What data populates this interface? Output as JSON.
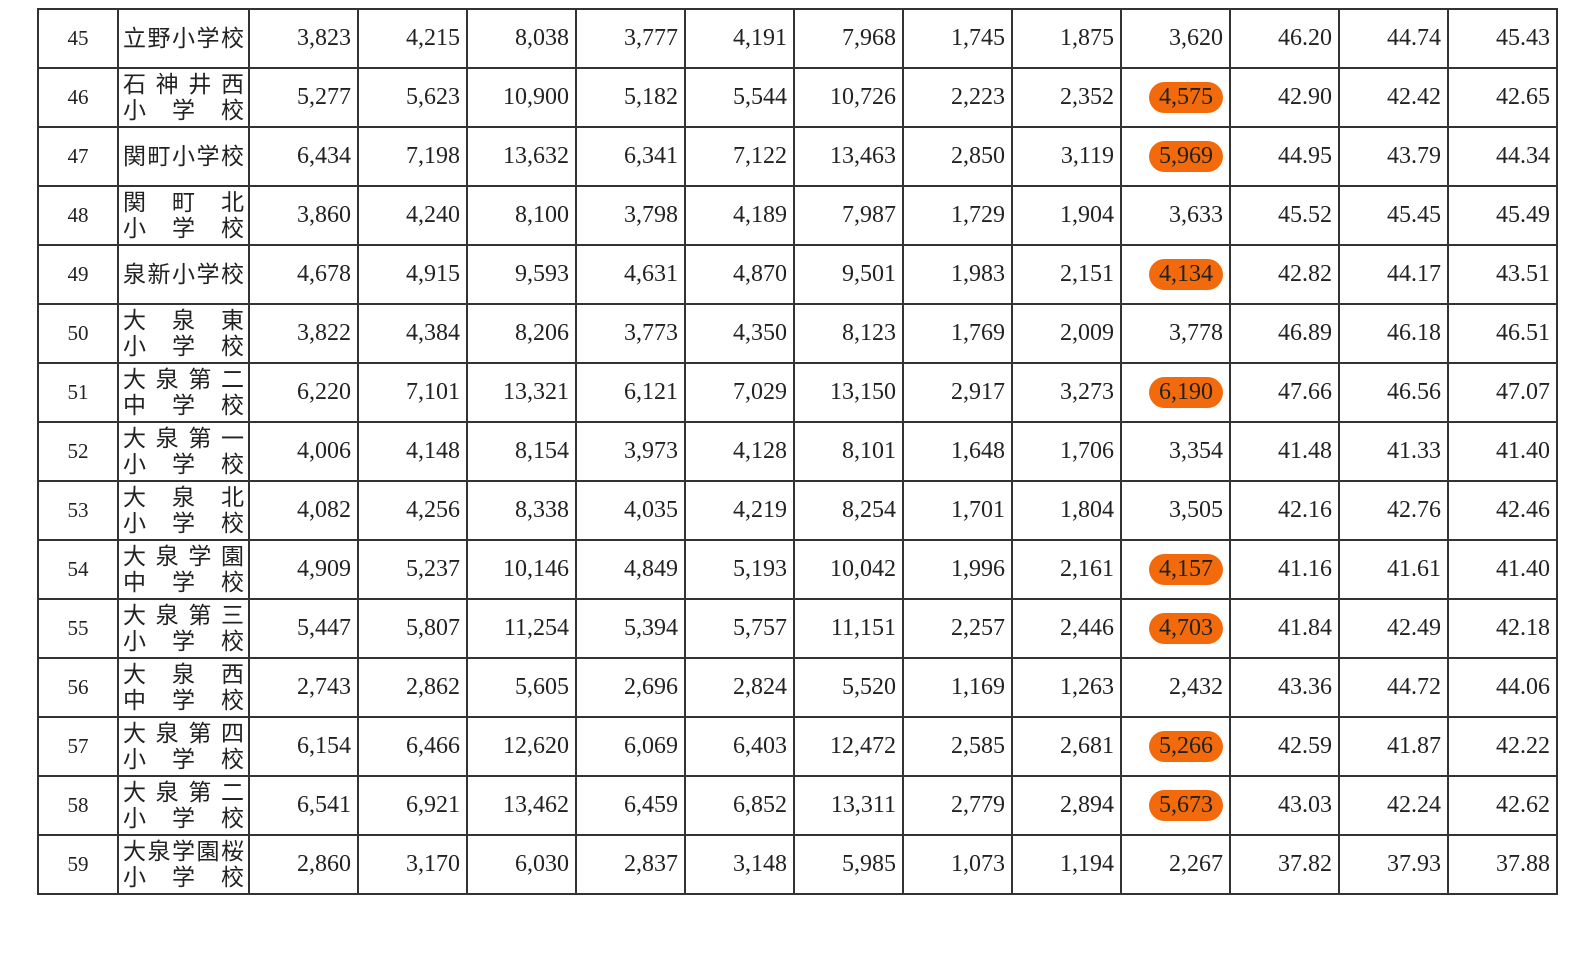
{
  "table": {
    "highlight_color": "#f26a0c",
    "highlight_column": 8,
    "rows": [
      {
        "no": "45",
        "name": [
          "立野小学校"
        ],
        "cells": [
          "3,823",
          "4,215",
          "8,038",
          "3,777",
          "4,191",
          "7,968",
          "1,745",
          "1,875",
          "3,620",
          "46.20",
          "44.74",
          "45.43"
        ],
        "highlighted": false
      },
      {
        "no": "46",
        "name": [
          "石神井西",
          "小学校"
        ],
        "cells": [
          "5,277",
          "5,623",
          "10,900",
          "5,182",
          "5,544",
          "10,726",
          "2,223",
          "2,352",
          "4,575",
          "42.90",
          "42.42",
          "42.65"
        ],
        "highlighted": true
      },
      {
        "no": "47",
        "name": [
          "関町小学校"
        ],
        "cells": [
          "6,434",
          "7,198",
          "13,632",
          "6,341",
          "7,122",
          "13,463",
          "2,850",
          "3,119",
          "5,969",
          "44.95",
          "43.79",
          "44.34"
        ],
        "highlighted": true
      },
      {
        "no": "48",
        "name": [
          "関町北",
          "小学校"
        ],
        "cells": [
          "3,860",
          "4,240",
          "8,100",
          "3,798",
          "4,189",
          "7,987",
          "1,729",
          "1,904",
          "3,633",
          "45.52",
          "45.45",
          "45.49"
        ],
        "highlighted": false
      },
      {
        "no": "49",
        "name": [
          "泉新小学校"
        ],
        "cells": [
          "4,678",
          "4,915",
          "9,593",
          "4,631",
          "4,870",
          "9,501",
          "1,983",
          "2,151",
          "4,134",
          "42.82",
          "44.17",
          "43.51"
        ],
        "highlighted": true
      },
      {
        "no": "50",
        "name": [
          "大泉東",
          "小学校"
        ],
        "cells": [
          "3,822",
          "4,384",
          "8,206",
          "3,773",
          "4,350",
          "8,123",
          "1,769",
          "2,009",
          "3,778",
          "46.89",
          "46.18",
          "46.51"
        ],
        "highlighted": false
      },
      {
        "no": "51",
        "name": [
          "大泉第二",
          "中学校"
        ],
        "cells": [
          "6,220",
          "7,101",
          "13,321",
          "6,121",
          "7,029",
          "13,150",
          "2,917",
          "3,273",
          "6,190",
          "47.66",
          "46.56",
          "47.07"
        ],
        "highlighted": true
      },
      {
        "no": "52",
        "name": [
          "大泉第一",
          "小学校"
        ],
        "cells": [
          "4,006",
          "4,148",
          "8,154",
          "3,973",
          "4,128",
          "8,101",
          "1,648",
          "1,706",
          "3,354",
          "41.48",
          "41.33",
          "41.40"
        ],
        "highlighted": false
      },
      {
        "no": "53",
        "name": [
          "大泉北",
          "小学校"
        ],
        "cells": [
          "4,082",
          "4,256",
          "8,338",
          "4,035",
          "4,219",
          "8,254",
          "1,701",
          "1,804",
          "3,505",
          "42.16",
          "42.76",
          "42.46"
        ],
        "highlighted": false
      },
      {
        "no": "54",
        "name": [
          "大泉学園",
          "中学校"
        ],
        "cells": [
          "4,909",
          "5,237",
          "10,146",
          "4,849",
          "5,193",
          "10,042",
          "1,996",
          "2,161",
          "4,157",
          "41.16",
          "41.61",
          "41.40"
        ],
        "highlighted": true
      },
      {
        "no": "55",
        "name": [
          "大泉第三",
          "小学校"
        ],
        "cells": [
          "5,447",
          "5,807",
          "11,254",
          "5,394",
          "5,757",
          "11,151",
          "2,257",
          "2,446",
          "4,703",
          "41.84",
          "42.49",
          "42.18"
        ],
        "highlighted": true
      },
      {
        "no": "56",
        "name": [
          "大泉西",
          "中学校"
        ],
        "cells": [
          "2,743",
          "2,862",
          "5,605",
          "2,696",
          "2,824",
          "5,520",
          "1,169",
          "1,263",
          "2,432",
          "43.36",
          "44.72",
          "44.06"
        ],
        "highlighted": false
      },
      {
        "no": "57",
        "name": [
          "大泉第四",
          "小学校"
        ],
        "cells": [
          "6,154",
          "6,466",
          "12,620",
          "6,069",
          "6,403",
          "12,472",
          "2,585",
          "2,681",
          "5,266",
          "42.59",
          "41.87",
          "42.22"
        ],
        "highlighted": true
      },
      {
        "no": "58",
        "name": [
          "大泉第二",
          "小学校"
        ],
        "cells": [
          "6,541",
          "6,921",
          "13,462",
          "6,459",
          "6,852",
          "13,311",
          "2,779",
          "2,894",
          "5,673",
          "43.03",
          "42.24",
          "42.62"
        ],
        "highlighted": true
      },
      {
        "no": "59",
        "name": [
          "大泉学園桜",
          "小学校"
        ],
        "cells": [
          "2,860",
          "3,170",
          "6,030",
          "2,837",
          "3,148",
          "5,985",
          "1,073",
          "1,194",
          "2,267",
          "37.82",
          "37.93",
          "37.88"
        ],
        "highlighted": false
      }
    ]
  }
}
